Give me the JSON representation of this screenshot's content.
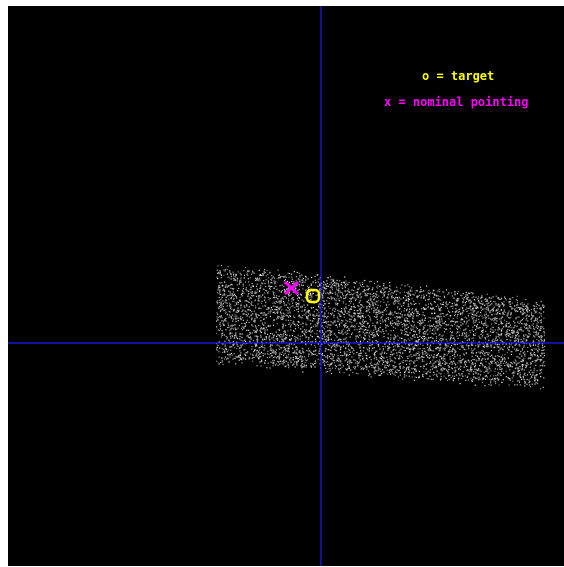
{
  "colors": {
    "background": "#000000",
    "axis": "#1a1aff",
    "events": "#c8c8c8",
    "target": "#ffff00",
    "nominal": "#ff00ff"
  },
  "legend": {
    "target_label": "o = target",
    "nominal_label": "x = nominal pointing"
  },
  "markers": {
    "target": {
      "symbol": "o"
    },
    "nominal_pointing": {
      "symbol": "x"
    }
  }
}
